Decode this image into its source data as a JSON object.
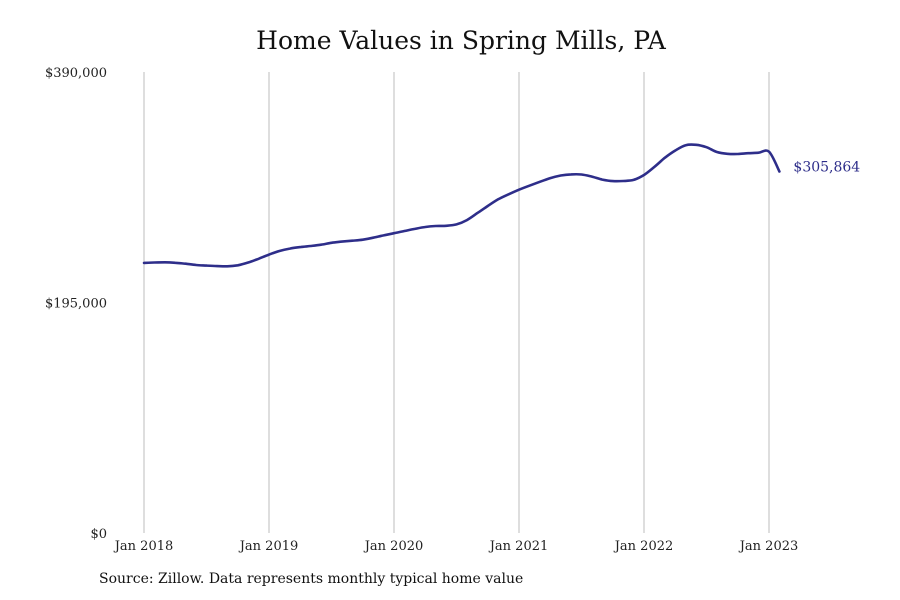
{
  "chart_data": {
    "type": "line",
    "title": "Home Values in Spring Mills, PA",
    "xlabel": "",
    "ylabel": "",
    "x_tick_labels": [
      "Jan 2018",
      "Jan 2019",
      "Jan 2020",
      "Jan 2021",
      "Jan 2022",
      "Jan 2023"
    ],
    "y_tick_labels": [
      "$0",
      "$195,000",
      "$390,000"
    ],
    "y_ticks": [
      0,
      195000,
      390000
    ],
    "ylim": [
      0,
      390000
    ],
    "xlim": [
      "2018-01",
      "2023-09"
    ],
    "grid": "vertical",
    "line_color": "#2e2e8a",
    "end_label": "$305,864",
    "series": [
      {
        "x": [
          "2018-01",
          "2018-02",
          "2018-03",
          "2018-04",
          "2018-05",
          "2018-06",
          "2018-07",
          "2018-08",
          "2018-09",
          "2018-10",
          "2018-11",
          "2018-12",
          "2019-01",
          "2019-02",
          "2019-03",
          "2019-04",
          "2019-05",
          "2019-06",
          "2019-07",
          "2019-08",
          "2019-09",
          "2019-10",
          "2019-11",
          "2019-12",
          "2020-01",
          "2020-02",
          "2020-03",
          "2020-04",
          "2020-05",
          "2020-06",
          "2020-07",
          "2020-08",
          "2020-09",
          "2020-10",
          "2020-11",
          "2020-12",
          "2021-01",
          "2021-02",
          "2021-03",
          "2021-04",
          "2021-05",
          "2021-06",
          "2021-07",
          "2021-08",
          "2021-09",
          "2021-10",
          "2021-11",
          "2021-12",
          "2022-01",
          "2022-02",
          "2022-03",
          "2022-04",
          "2022-05",
          "2022-06",
          "2022-07",
          "2022-08",
          "2022-09",
          "2022-10",
          "2022-11",
          "2022-12",
          "2023-01",
          "2023-02"
        ],
        "values": [
          228500,
          228800,
          229000,
          228600,
          227800,
          226700,
          226200,
          225800,
          225600,
          226500,
          228800,
          232000,
          235500,
          238600,
          240600,
          241900,
          242800,
          243900,
          245500,
          246500,
          247300,
          248100,
          249800,
          251800,
          253600,
          255500,
          257300,
          258900,
          259700,
          259900,
          261100,
          264700,
          270600,
          276600,
          282300,
          286500,
          290400,
          293800,
          297100,
          300200,
          302400,
          303400,
          303300,
          301500,
          299000,
          297700,
          297800,
          298700,
          302900,
          309700,
          317400,
          323600,
          328100,
          328400,
          326400,
          322300,
          320800,
          320600,
          321300,
          321700,
          322600,
          305864
        ]
      }
    ]
  },
  "footer": {
    "source": "Source: Zillow. Data represents monthly typical home value"
  }
}
